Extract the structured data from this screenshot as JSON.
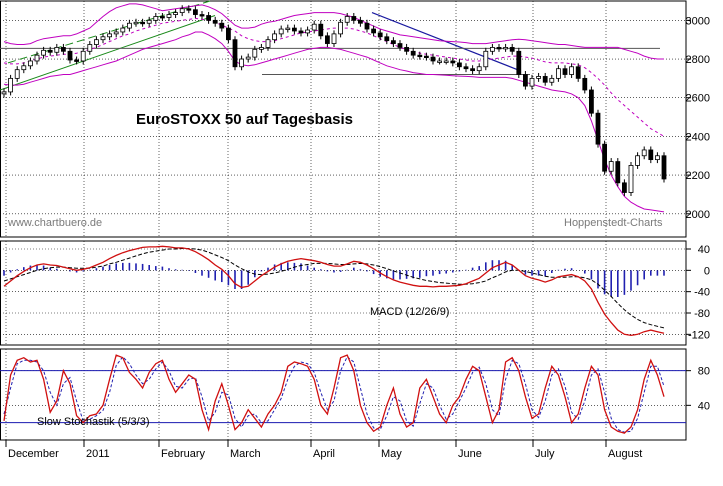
{
  "chart_data": [
    {
      "type": "candlestick",
      "title": "EuroSTOXX 50 auf Tagesbasis",
      "ylim": [
        1880,
        3100
      ],
      "yticks": [
        2000,
        2200,
        2400,
        2600,
        2800,
        3000
      ],
      "months": [
        "December",
        "2011",
        "February",
        "March",
        "April",
        "May",
        "June",
        "July",
        "August"
      ],
      "close": [
        2630,
        2700,
        2745,
        2765,
        2790,
        2820,
        2845,
        2835,
        2860,
        2840,
        2795,
        2790,
        2840,
        2875,
        2900,
        2915,
        2930,
        2940,
        2960,
        2985,
        2990,
        2985,
        3000,
        3020,
        3015,
        3030,
        3040,
        3060,
        3055,
        3030,
        3025,
        3000,
        2985,
        2960,
        2900,
        2760,
        2800,
        2810,
        2850,
        2860,
        2900,
        2930,
        2955,
        2960,
        2945,
        2935,
        2950,
        2980,
        2920,
        2880,
        2930,
        2990,
        3020,
        3000,
        2985,
        2955,
        2935,
        2915,
        2895,
        2880,
        2860,
        2840,
        2820,
        2815,
        2810,
        2790,
        2790,
        2790,
        2780,
        2760,
        2750,
        2740,
        2760,
        2840,
        2860,
        2855,
        2860,
        2840,
        2720,
        2660,
        2700,
        2710,
        2680,
        2700,
        2750,
        2720,
        2760,
        2700,
        2640,
        2520,
        2360,
        2220,
        2270,
        2160,
        2110,
        2250,
        2300,
        2330,
        2280,
        2300,
        2180
      ],
      "series": [
        {
          "name": "",
          "role": "bollinger-upper",
          "values": [
            2890,
            2880,
            2875,
            2875,
            2880,
            2895,
            2905,
            2910,
            2915,
            2920,
            2920,
            2930,
            2945,
            2960,
            2990,
            3020,
            3045,
            3065,
            3075,
            3085,
            3085,
            3080,
            3070,
            3060,
            3050,
            3055,
            3060,
            3065,
            3070,
            3075,
            3080,
            3070,
            3055,
            3035,
            3005,
            2975,
            2960,
            2960,
            2965,
            2980,
            2990,
            2995,
            3005,
            3015,
            3025,
            3030,
            3035,
            3040,
            3040,
            3040,
            3040,
            3035,
            3025,
            3015,
            3000,
            2985,
            2970,
            2955,
            2945,
            2935,
            2925,
            2920,
            2915,
            2910,
            2905,
            2900,
            2895,
            2892,
            2890,
            2888,
            2885,
            2880,
            2880,
            2880,
            2885,
            2890,
            2895,
            2900,
            2902,
            2900,
            2895,
            2890,
            2885,
            2880,
            2875,
            2875,
            2870,
            2865,
            2860,
            2860,
            2860,
            2860,
            2860,
            2860,
            2850,
            2840,
            2830,
            2815,
            2805,
            2800,
            2800
          ]
        },
        {
          "name": "",
          "role": "moving-average",
          "values": [
            2780,
            2775,
            2775,
            2780,
            2790,
            2800,
            2810,
            2815,
            2820,
            2825,
            2825,
            2830,
            2840,
            2850,
            2860,
            2875,
            2890,
            2905,
            2920,
            2930,
            2945,
            2955,
            2965,
            2975,
            2985,
            2990,
            2995,
            3000,
            3005,
            3010,
            3005,
            3000,
            2990,
            2975,
            2960,
            2945,
            2920,
            2905,
            2895,
            2890,
            2890,
            2895,
            2905,
            2915,
            2925,
            2935,
            2940,
            2945,
            2950,
            2955,
            2960,
            2960,
            2960,
            2955,
            2945,
            2935,
            2920,
            2905,
            2890,
            2875,
            2860,
            2850,
            2840,
            2830,
            2825,
            2820,
            2815,
            2810,
            2805,
            2800,
            2795,
            2790,
            2790,
            2795,
            2800,
            2805,
            2810,
            2815,
            2815,
            2810,
            2805,
            2795,
            2785,
            2780,
            2780,
            2780,
            2775,
            2770,
            2755,
            2730,
            2700,
            2665,
            2625,
            2590,
            2560,
            2530,
            2500,
            2470,
            2440,
            2420,
            2400
          ]
        },
        {
          "name": "",
          "role": "bollinger-lower",
          "values": [
            2670,
            2665,
            2665,
            2670,
            2680,
            2690,
            2700,
            2710,
            2715,
            2720,
            2720,
            2730,
            2740,
            2750,
            2760,
            2770,
            2780,
            2790,
            2805,
            2820,
            2835,
            2850,
            2860,
            2870,
            2880,
            2890,
            2900,
            2915,
            2925,
            2940,
            2940,
            2925,
            2905,
            2880,
            2840,
            2790,
            2770,
            2765,
            2770,
            2780,
            2790,
            2800,
            2810,
            2820,
            2830,
            2840,
            2850,
            2855,
            2860,
            2860,
            2855,
            2850,
            2840,
            2830,
            2820,
            2810,
            2795,
            2780,
            2765,
            2755,
            2745,
            2738,
            2730,
            2725,
            2720,
            2720,
            2718,
            2716,
            2714,
            2712,
            2710,
            2708,
            2705,
            2705,
            2705,
            2705,
            2705,
            2700,
            2690,
            2680,
            2670,
            2660,
            2650,
            2640,
            2635,
            2630,
            2620,
            2600,
            2560,
            2480,
            2380,
            2280,
            2200,
            2140,
            2090,
            2060,
            2040,
            2025,
            2020,
            2015,
            2010
          ]
        }
      ],
      "watermark_left": "www.chartbuero.de",
      "watermark_right": "Hoppenstedt-Charts"
    },
    {
      "type": "macd",
      "title": "MACD (12/26/9)",
      "ylim": [
        -140,
        55
      ],
      "yticks": [
        40,
        0,
        -40,
        -80,
        -120
      ],
      "series": [
        {
          "name": "",
          "role": "macd",
          "values": [
            -30,
            -20,
            -10,
            -2,
            5,
            10,
            12,
            10,
            9,
            6,
            3,
            0,
            2,
            5,
            10,
            15,
            22,
            28,
            33,
            37,
            40,
            43,
            44,
            44,
            45,
            44,
            42,
            42,
            40,
            35,
            28,
            20,
            10,
            2,
            -10,
            -25,
            -32,
            -30,
            -20,
            -10,
            -2,
            6,
            12,
            17,
            20,
            22,
            20,
            18,
            15,
            11,
            8,
            8,
            12,
            17,
            15,
            10,
            3,
            -5,
            -12,
            -18,
            -22,
            -25,
            -28,
            -30,
            -30,
            -31,
            -30,
            -30,
            -29,
            -28,
            -25,
            -20,
            -15,
            -5,
            5,
            10,
            15,
            10,
            0,
            -10,
            -15,
            -18,
            -22,
            -18,
            -12,
            -10,
            -8,
            -12,
            -20,
            -35,
            -60,
            -82,
            -98,
            -112,
            -120,
            -122,
            -120,
            -115,
            -112,
            -115,
            -118
          ]
        },
        {
          "name": "",
          "role": "signal",
          "values": [
            -20,
            -16,
            -12,
            -8,
            -4,
            0,
            3,
            5,
            6,
            6,
            5,
            4,
            4,
            4,
            6,
            8,
            12,
            15,
            19,
            23,
            27,
            31,
            34,
            36,
            38,
            40,
            40,
            41,
            41,
            40,
            38,
            34,
            29,
            24,
            18,
            10,
            3,
            -3,
            -7,
            -8,
            -7,
            -5,
            -2,
            2,
            6,
            9,
            11,
            13,
            13,
            13,
            12,
            11,
            11,
            12,
            13,
            12,
            10,
            7,
            3,
            -1,
            -5,
            -9,
            -13,
            -16,
            -19,
            -21,
            -23,
            -24,
            -25,
            -26,
            -26,
            -25,
            -23,
            -20,
            -14,
            -9,
            -3,
            0,
            0,
            -2,
            -5,
            -8,
            -11,
            -13,
            -13,
            -13,
            -12,
            -12,
            -14,
            -18,
            -26,
            -37,
            -49,
            -62,
            -74,
            -84,
            -92,
            -98,
            -102,
            -105,
            -108
          ]
        },
        {
          "name": "",
          "role": "histogram",
          "values": [
            -10,
            -4,
            2,
            6,
            9,
            10,
            9,
            5,
            3,
            0,
            -2,
            -4,
            -2,
            1,
            4,
            7,
            10,
            13,
            14,
            14,
            13,
            12,
            10,
            8,
            7,
            4,
            2,
            1,
            -1,
            -5,
            -10,
            -14,
            -19,
            -22,
            -28,
            -35,
            -35,
            -27,
            -13,
            -2,
            5,
            11,
            14,
            15,
            14,
            13,
            9,
            5,
            2,
            -2,
            -4,
            -3,
            1,
            5,
            2,
            -2,
            -7,
            -12,
            -15,
            -17,
            -17,
            -16,
            -15,
            -14,
            -11,
            -10,
            -7,
            -6,
            -4,
            -2,
            1,
            5,
            8,
            15,
            19,
            19,
            18,
            10,
            0,
            -8,
            -10,
            -10,
            -11,
            -5,
            1,
            3,
            4,
            0,
            -6,
            -17,
            -34,
            -45,
            -49,
            -50,
            -46,
            -38,
            -28,
            -17,
            -10,
            -10,
            -10
          ]
        }
      ]
    },
    {
      "type": "line",
      "title": "Slow Stochastik (5/3/3)",
      "ylim": [
        0,
        105
      ],
      "yticks": [
        80,
        40
      ],
      "reference_lines": [
        80,
        20
      ],
      "series": [
        {
          "name": "",
          "role": "%K",
          "values": [
            22,
            75,
            92,
            95,
            90,
            92,
            70,
            32,
            45,
            80,
            65,
            28,
            20,
            28,
            30,
            40,
            70,
            98,
            95,
            78,
            70,
            60,
            78,
            88,
            92,
            70,
            55,
            65,
            75,
            70,
            35,
            12,
            45,
            65,
            40,
            12,
            20,
            35,
            25,
            15,
            30,
            40,
            55,
            85,
            90,
            88,
            85,
            70,
            40,
            30,
            60,
            95,
            98,
            80,
            40,
            20,
            10,
            15,
            40,
            60,
            30,
            15,
            20,
            60,
            70,
            50,
            30,
            20,
            40,
            50,
            70,
            85,
            80,
            50,
            20,
            35,
            90,
            95,
            80,
            50,
            25,
            30,
            60,
            85,
            75,
            50,
            20,
            30,
            60,
            85,
            75,
            35,
            15,
            10,
            8,
            15,
            35,
            70,
            92,
            75,
            50
          ]
        },
        {
          "name": "",
          "role": "%D",
          "values": [
            30,
            60,
            88,
            92,
            92,
            90,
            80,
            55,
            40,
            65,
            72,
            45,
            22,
            24,
            28,
            34,
            55,
            86,
            96,
            88,
            75,
            65,
            70,
            82,
            90,
            80,
            62,
            60,
            70,
            72,
            50,
            22,
            32,
            55,
            52,
            25,
            15,
            28,
            30,
            20,
            22,
            35,
            48,
            70,
            85,
            90,
            88,
            78,
            55,
            35,
            45,
            80,
            96,
            90,
            60,
            30,
            14,
            12,
            28,
            50,
            45,
            22,
            16,
            42,
            65,
            60,
            40,
            24,
            30,
            45,
            60,
            78,
            84,
            65,
            35,
            28,
            70,
            92,
            88,
            65,
            35,
            26,
            45,
            75,
            82,
            62,
            32,
            24,
            45,
            75,
            82,
            55,
            25,
            12,
            9,
            10,
            25,
            55,
            85,
            85,
            62
          ]
        }
      ]
    }
  ]
}
